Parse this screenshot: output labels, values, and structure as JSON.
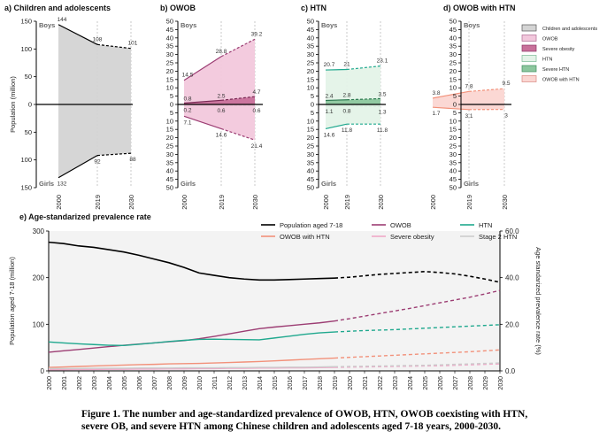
{
  "chart_data": [
    {
      "type": "area",
      "panel_title": "a) Children and adolescents",
      "ylabel": "Population (million)",
      "ylim": [
        -150,
        150
      ],
      "yticks": [
        150,
        100,
        50,
        0,
        50,
        100,
        150
      ],
      "xticks": [
        "2000",
        "2019",
        "2030"
      ],
      "top_label": "Boys",
      "bottom_label": "Girls",
      "series": [
        {
          "name": "Children and adolescents",
          "sex": "Boys",
          "values": [
            144,
            108,
            101
          ]
        },
        {
          "name": "Children and adolescents",
          "sex": "Girls",
          "values": [
            132,
            92,
            88
          ]
        }
      ]
    },
    {
      "type": "area",
      "panel_title": "b) OWOB",
      "ylim": [
        -50,
        50
      ],
      "yticks": [
        50,
        45,
        40,
        35,
        30,
        25,
        20,
        15,
        10,
        5,
        0,
        5,
        10,
        15,
        20,
        25,
        30,
        35,
        40,
        45,
        50
      ],
      "xticks": [
        "2000",
        "2019",
        "2030"
      ],
      "top_label": "Boys",
      "bottom_label": "Girls",
      "series": [
        {
          "name": "OWOB",
          "sex": "Boys",
          "values": [
            14.5,
            28.8,
            39.2
          ]
        },
        {
          "name": "Severe obesity",
          "sex": "Boys",
          "values": [
            0.8,
            2.5,
            4.7
          ]
        },
        {
          "name": "Severe obesity",
          "sex": "Girls",
          "values": [
            0.2,
            0.6,
            0.6
          ]
        },
        {
          "name": "OWOB",
          "sex": "Girls",
          "values": [
            7.1,
            14.6,
            21.4
          ]
        }
      ]
    },
    {
      "type": "area",
      "panel_title": "c) HTN",
      "ylim": [
        -50,
        50
      ],
      "yticks": [
        50,
        45,
        40,
        35,
        30,
        25,
        20,
        15,
        10,
        5,
        0,
        5,
        10,
        15,
        20,
        25,
        30,
        35,
        40,
        45,
        50
      ],
      "xticks": [
        "2000",
        "2019",
        "2030"
      ],
      "top_label": "Boys",
      "bottom_label": "Girls",
      "series": [
        {
          "name": "HTN",
          "sex": "Boys",
          "values": [
            20.7,
            21.0,
            23.1
          ]
        },
        {
          "name": "Severe HTN",
          "sex": "Boys",
          "values": [
            2.4,
            2.8,
            3.5
          ]
        },
        {
          "name": "Severe HTN",
          "sex": "Girls",
          "values": [
            1.1,
            0.8,
            1.3
          ]
        },
        {
          "name": "HTN",
          "sex": "Girls",
          "values": [
            14.6,
            11.8,
            11.8
          ]
        }
      ]
    },
    {
      "type": "area",
      "panel_title": "d) OWOB with HTN",
      "ylim": [
        -50,
        50
      ],
      "yticks": [
        50,
        45,
        40,
        35,
        30,
        25,
        20,
        15,
        10,
        5,
        0,
        5,
        10,
        15,
        20,
        25,
        30,
        35,
        40,
        45,
        50
      ],
      "xticks": [
        "2000",
        "2019",
        "2030"
      ],
      "top_label": "Boys",
      "bottom_label": "Girls",
      "series": [
        {
          "name": "OWOB with HTN",
          "sex": "Boys",
          "values": [
            3.8,
            7.8,
            9.5
          ]
        },
        {
          "name": "OWOB with HTN",
          "sex": "Girls",
          "values": [
            1.7,
            3.1,
            3.0
          ]
        }
      ]
    },
    {
      "type": "line",
      "panel_title": "e) Age-standarized prevalence rate",
      "ylabel": "Population aged 7-18 (million)",
      "ylabel_right": "Age standarized prevalence rate (%)",
      "ylim": [
        0,
        300
      ],
      "yticks": [
        0,
        100,
        200,
        300
      ],
      "ylim_right": [
        0,
        60
      ],
      "yticks_right": [
        "0.0",
        "20.0",
        "40.0",
        "60.0"
      ],
      "x": [
        "2000",
        "2001",
        "2002",
        "2003",
        "2004",
        "2005",
        "2006",
        "2007",
        "2008",
        "2009",
        "2010",
        "2011",
        "2012",
        "2013",
        "2014",
        "2015",
        "2016",
        "2017",
        "2018",
        "2019",
        "2020",
        "2021",
        "2022",
        "2023",
        "2024",
        "2025",
        "2026",
        "2027",
        "2028",
        "2029",
        "2030"
      ],
      "projection_start": "2019",
      "series": [
        {
          "name": "Population aged 7-18",
          "axis": "left",
          "values": [
            276,
            273,
            268,
            265,
            260,
            255,
            248,
            240,
            232,
            222,
            210,
            205,
            200,
            197,
            195,
            195,
            196,
            197,
            198,
            199,
            201,
            204,
            207,
            209,
            211,
            213,
            211,
            208,
            203,
            197,
            190
          ]
        },
        {
          "name": "OWOB with HTN",
          "axis": "right",
          "values": [
            1.5,
            1.7,
            1.9,
            2.1,
            2.3,
            2.5,
            2.7,
            2.8,
            3.0,
            3.1,
            3.2,
            3.4,
            3.6,
            3.8,
            4.0,
            4.3,
            4.6,
            4.9,
            5.2,
            5.5,
            5.8,
            6.1,
            6.4,
            6.7,
            7.0,
            7.3,
            7.6,
            7.9,
            8.2,
            8.6,
            9.0
          ]
        },
        {
          "name": "OWOB",
          "axis": "right",
          "values": [
            8.0,
            8.6,
            9.2,
            9.8,
            10.4,
            11.0,
            11.5,
            12.0,
            12.5,
            13.0,
            13.8,
            14.8,
            15.9,
            17.0,
            18.1,
            18.8,
            19.4,
            20.0,
            20.6,
            21.4,
            22.4,
            23.5,
            24.6,
            25.7,
            26.8,
            28.0,
            29.2,
            30.4,
            31.6,
            33.0,
            34.5
          ]
        },
        {
          "name": "Severe obesity",
          "axis": "right",
          "values": [
            0.5,
            0.5,
            0.6,
            0.6,
            0.7,
            0.7,
            0.8,
            0.8,
            0.9,
            0.9,
            1.0,
            1.0,
            1.1,
            1.1,
            1.2,
            1.2,
            1.3,
            1.3,
            1.4,
            1.5,
            1.6,
            1.7,
            1.8,
            1.9,
            2.0,
            2.1,
            2.2,
            2.4,
            2.6,
            2.8,
            3.0
          ]
        },
        {
          "name": "HTN",
          "axis": "right",
          "values": [
            12.4,
            12.0,
            11.6,
            11.3,
            11.0,
            10.9,
            11.4,
            12.0,
            12.6,
            13.1,
            13.5,
            13.6,
            13.5,
            13.4,
            13.3,
            14.1,
            14.9,
            15.7,
            16.3,
            16.7,
            17.0,
            17.3,
            17.5,
            17.7,
            18.0,
            18.3,
            18.6,
            18.9,
            19.2,
            19.5,
            19.8
          ]
        },
        {
          "name": "Stage 2 HTN",
          "axis": "right",
          "values": [
            1.0,
            1.0,
            1.0,
            1.1,
            1.1,
            1.1,
            1.2,
            1.2,
            1.2,
            1.3,
            1.3,
            1.3,
            1.4,
            1.4,
            1.5,
            1.5,
            1.6,
            1.6,
            1.7,
            1.8,
            1.9,
            2.0,
            2.1,
            2.2,
            2.3,
            2.4,
            2.6,
            2.8,
            3.0,
            3.2,
            3.4
          ]
        }
      ]
    }
  ],
  "legend_abcd": [
    {
      "label": "Children and adolescents",
      "color": "#d4d4d4",
      "border": "#555555"
    },
    {
      "label": "OWOB",
      "color": "#f2c8dc",
      "border": "#b06a92"
    },
    {
      "label": "Severe obesity",
      "color": "#c8709a",
      "border": "#8a3262"
    },
    {
      "label": "HTN",
      "color": "#e4f3e8",
      "border": "#7ab994"
    },
    {
      "label": "Severe HTN",
      "color": "#8cc79e",
      "border": "#3f8d5d"
    },
    {
      "label": "OWOB with HTN",
      "color": "#fbd6d2",
      "border": "#d98880"
    }
  ],
  "legend_e": [
    {
      "label": "Population aged 7-18",
      "color": "#000000"
    },
    {
      "label": "OWOB",
      "color": "#9c3d73"
    },
    {
      "label": "HTN",
      "color": "#1fa88e"
    },
    {
      "label": "OWOB with HTN",
      "color": "#f2917a"
    },
    {
      "label": "Severe obesity",
      "color": "#f0a8c8"
    },
    {
      "label": "Stage 2 HTN",
      "color": "#cccccc"
    }
  ],
  "caption": "Figure 1. The number and age-standardized prevalence of OWOB, HTN, OWOB coexisting with HTN, severe OB, and severe HTN among Chinese children and adolescents aged 7-18 years, 2000-2030."
}
